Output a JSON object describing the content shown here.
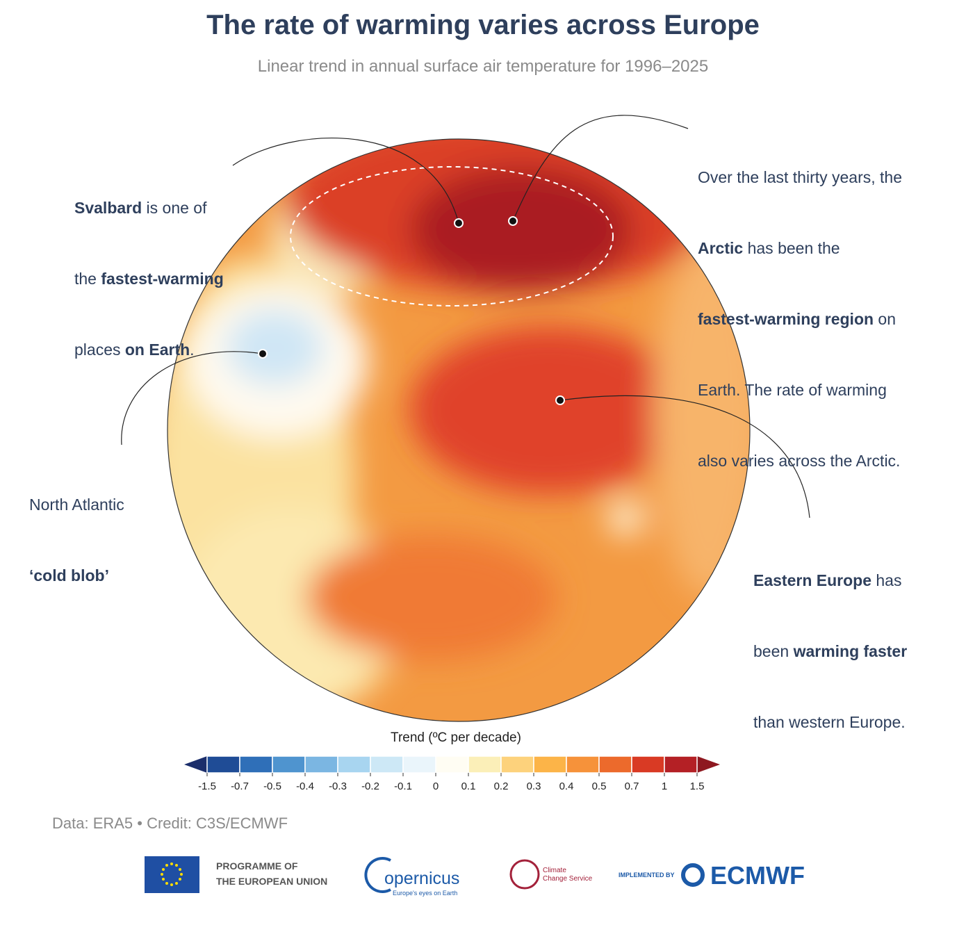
{
  "title": "The rate of warming varies across Europe",
  "subtitle": "Linear trend in annual surface air temperature for 1996–2025",
  "annotations": [
    {
      "lines": [
        [
          "Svalbard",
          " is one of"
        ],
        [
          "the ",
          "fastest-warming"
        ],
        [
          "places ",
          "on Earth",
          "."
        ]
      ]
    },
    {
      "lines": [
        [
          "Over the last thirty years, the"
        ],
        [
          "Arctic",
          " has been the"
        ],
        [
          "fastest-warming region",
          " on"
        ],
        [
          "Earth. The rate of warming"
        ],
        [
          "also varies across the Arctic."
        ]
      ]
    },
    {
      "lines": [
        [
          "North Atlantic"
        ],
        [
          "‘cold blob’"
        ]
      ]
    },
    {
      "lines": [
        [
          "Eastern Europe",
          " has"
        ],
        [
          "been ",
          "warming faster"
        ],
        [
          "than western Europe."
        ]
      ]
    }
  ],
  "colorbar": {
    "label": "Trend (ºC per decade)",
    "ticks": [
      -1.5,
      -0.7,
      -0.5,
      -0.4,
      -0.3,
      -0.2,
      -0.1,
      0,
      0.1,
      0.2,
      0.3,
      0.4,
      0.5,
      0.7,
      1,
      1.5
    ],
    "colors": [
      "#1f4c96",
      "#2f6fb8",
      "#4f94cf",
      "#7bb6e2",
      "#a8d5f0",
      "#cde8f6",
      "#eaf5fb",
      "#fffdf3",
      "#fbefb8",
      "#fdd27c",
      "#fcb448",
      "#f6923a",
      "#ec6a2c",
      "#d93a24",
      "#b42025"
    ],
    "under_color": "#1b2e6b",
    "over_color": "#8e1820"
  },
  "source": "Data: ERA5 • Credit: C3S/ECMWF",
  "logos": {
    "eu": [
      "PROGRAMME OF",
      "THE EUROPEAN UNION"
    ],
    "copernicus": [
      "opernicus",
      "Europe's eyes on Earth"
    ],
    "c3s": [
      "Climate",
      "Change Service"
    ],
    "ecmwf": [
      "IMPLEMENTED BY",
      "ECMWF"
    ]
  }
}
